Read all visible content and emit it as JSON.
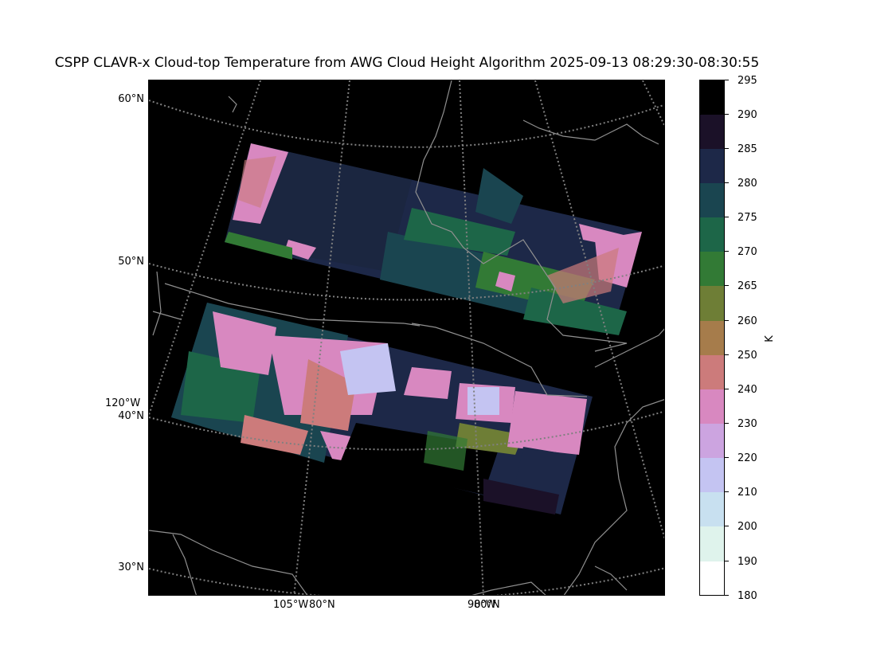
{
  "title": "CSPP CLAVR-x Cloud-top Temperature from AWG Cloud Height Algorithm 2025-09-13 08:29:30-08:30:55",
  "map": {
    "lat_labels": [
      "60°N",
      "50°N",
      "40°N",
      "30°N"
    ],
    "lon_labels_left": [
      "120°W"
    ],
    "lon_labels_bottom": [
      "105°W",
      "90°W"
    ],
    "overlapped_labels": [
      "80°N",
      "80°N"
    ],
    "background_color": "#000000",
    "grid_color": "#808080",
    "coast_color": "#909090"
  },
  "colorbar": {
    "unit": "K",
    "ticks": [
      "295",
      "290",
      "285",
      "280",
      "275",
      "270",
      "265",
      "260",
      "250",
      "240",
      "230",
      "220",
      "210",
      "200",
      "190",
      "180"
    ],
    "bands": [
      {
        "from": 290,
        "to": 295,
        "color": "#000000"
      },
      {
        "from": 285,
        "to": 290,
        "color": "#1b1128"
      },
      {
        "from": 280,
        "to": 285,
        "color": "#1d2848"
      },
      {
        "from": 275,
        "to": 280,
        "color": "#1a4550"
      },
      {
        "from": 270,
        "to": 275,
        "color": "#1d6648"
      },
      {
        "from": 265,
        "to": 270,
        "color": "#327a35"
      },
      {
        "from": 260,
        "to": 265,
        "color": "#6e7e36"
      },
      {
        "from": 250,
        "to": 260,
        "color": "#a67c4b"
      },
      {
        "from": 240,
        "to": 250,
        "color": "#cc7b7b"
      },
      {
        "from": 230,
        "to": 240,
        "color": "#d888c0"
      },
      {
        "from": 220,
        "to": 230,
        "color": "#cca4e0"
      },
      {
        "from": 210,
        "to": 220,
        "color": "#c4c4f2"
      },
      {
        "from": 200,
        "to": 210,
        "color": "#c8e0f0"
      },
      {
        "from": 190,
        "to": 200,
        "color": "#dff3ec"
      },
      {
        "from": 180,
        "to": 190,
        "color": "#ffffff"
      }
    ]
  }
}
